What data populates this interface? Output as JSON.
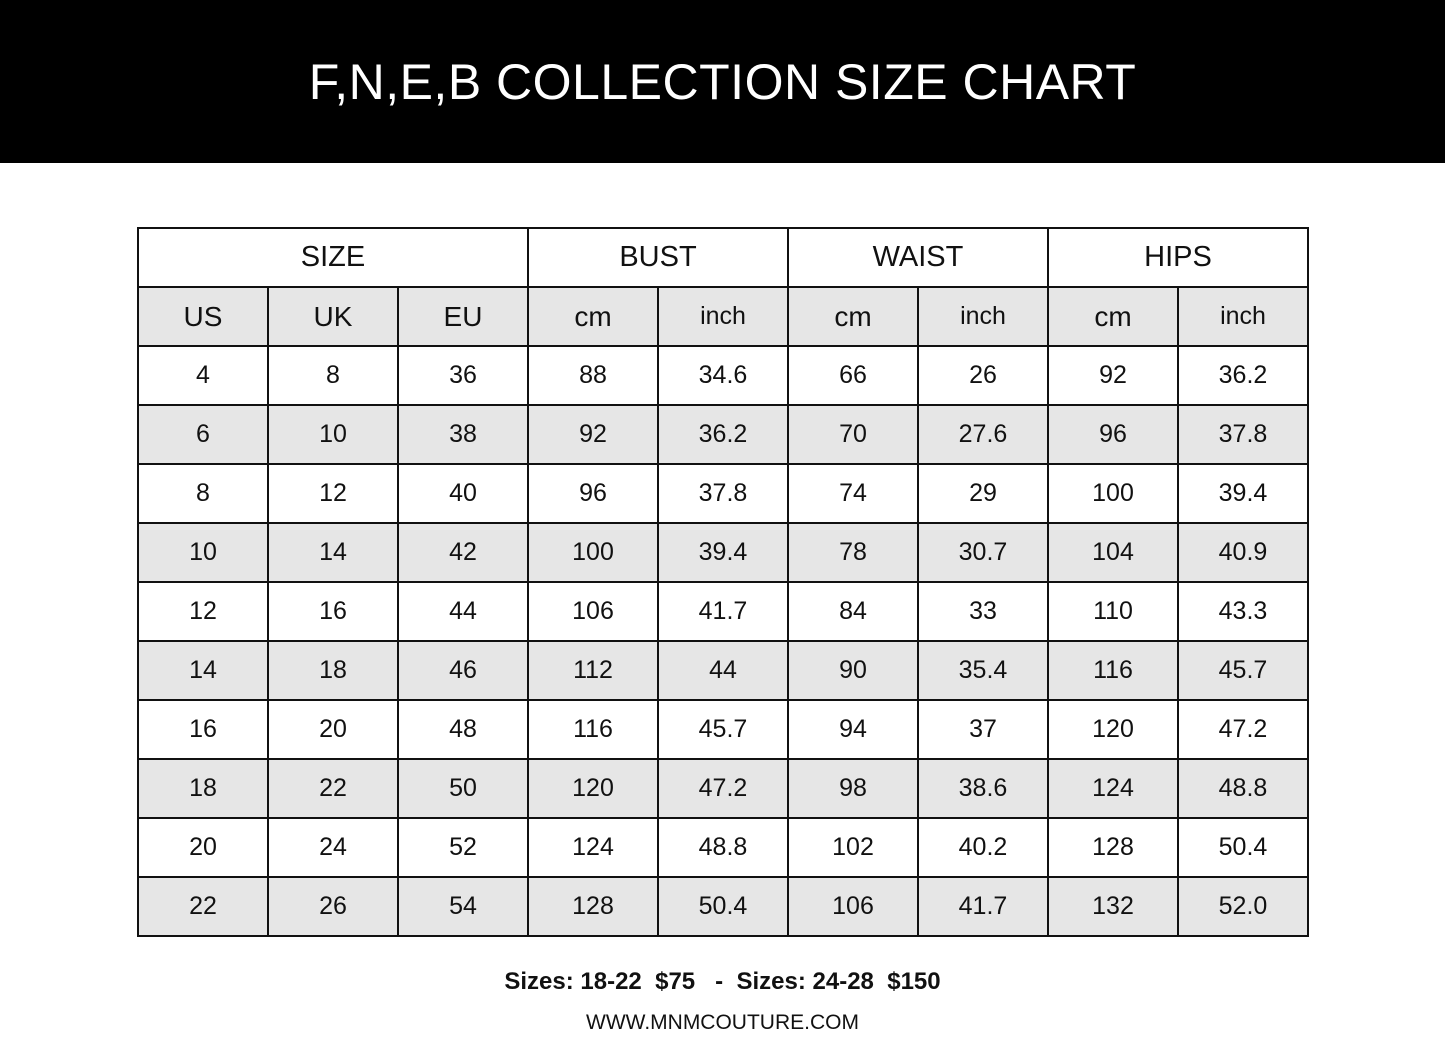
{
  "title": "F,N,E,B  COLLECTION SIZE CHART",
  "groups": [
    "SIZE",
    "BUST",
    "WAIST",
    "HIPS"
  ],
  "subheaders": [
    "US",
    "UK",
    "EU",
    "cm",
    "inch",
    "cm",
    "inch",
    "cm",
    "inch"
  ],
  "rows": [
    [
      "4",
      "8",
      "36",
      "88",
      "34.6",
      "66",
      "26",
      "92",
      "36.2"
    ],
    [
      "6",
      "10",
      "38",
      "92",
      "36.2",
      "70",
      "27.6",
      "96",
      "37.8"
    ],
    [
      "8",
      "12",
      "40",
      "96",
      "37.8",
      "74",
      "29",
      "100",
      "39.4"
    ],
    [
      "10",
      "14",
      "42",
      "100",
      "39.4",
      "78",
      "30.7",
      "104",
      "40.9"
    ],
    [
      "12",
      "16",
      "44",
      "106",
      "41.7",
      "84",
      "33",
      "110",
      "43.3"
    ],
    [
      "14",
      "18",
      "46",
      "112",
      "44",
      "90",
      "35.4",
      "116",
      "45.7"
    ],
    [
      "16",
      "20",
      "48",
      "116",
      "45.7",
      "94",
      "37",
      "120",
      "47.2"
    ],
    [
      "18",
      "22",
      "50",
      "120",
      "47.2",
      "98",
      "38.6",
      "124",
      "48.8"
    ],
    [
      "20",
      "24",
      "52",
      "124",
      "48.8",
      "102",
      "40.2",
      "128",
      "50.4"
    ],
    [
      "22",
      "26",
      "54",
      "128",
      "50.4",
      "106",
      "41.7",
      "132",
      "52.0"
    ]
  ],
  "footer": {
    "pricing": "Sizes: 18-22  $75   -  Sizes: 24-28  $150",
    "website": "WWW.MNMCOUTURE.COM"
  },
  "colors": {
    "banner": "#000000",
    "shade": "#e6e6e6"
  }
}
